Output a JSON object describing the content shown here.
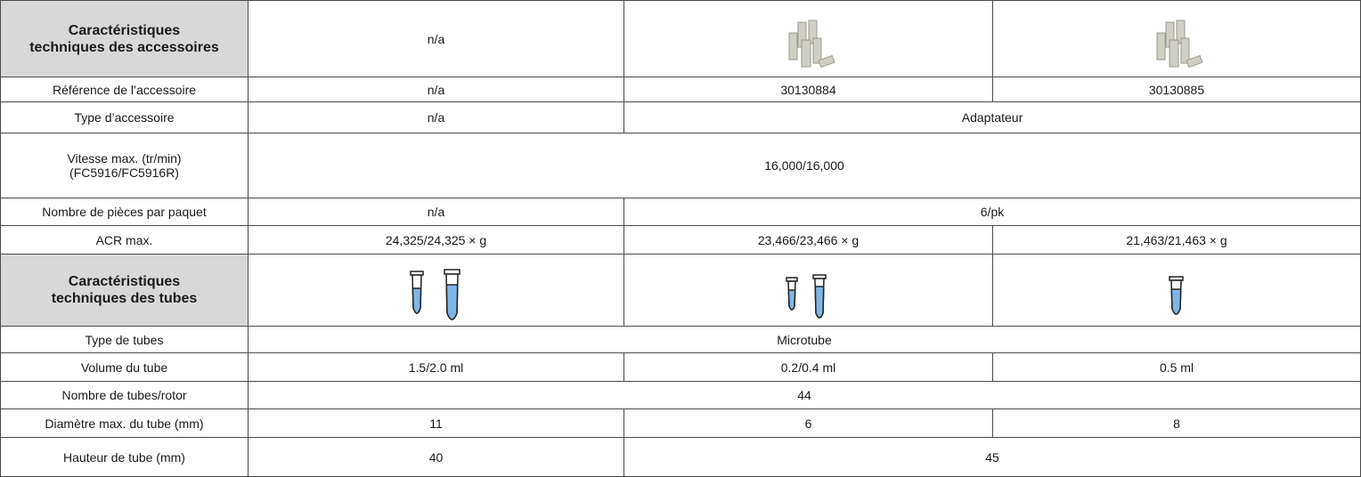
{
  "table": {
    "rows": [
      [
        "Caractéristiques\ntechniques des accessoires",
        "n/a"
      ],
      [
        "Référence de l’accessoire",
        "n/a",
        "30130884",
        "30130885"
      ],
      [
        "Type d’accessoire",
        "n/a",
        "Adaptateur"
      ],
      [
        "Vitesse max. (tr/min)\n(FC5916/FC5916R)",
        "16,000/16,000"
      ],
      [
        "Nombre de pièces par paquet",
        "n/a",
        "6/pk"
      ],
      [
        "ACR max.",
        "24,325/24,325 × g",
        "23,466/23,466 × g",
        "21,463/21,463 × g"
      ],
      [
        "Caractéristiques\ntechniques des tubes"
      ],
      [
        "Type de tubes",
        "Microtube"
      ],
      [
        "Volume du tube",
        "1.5/2.0 ml",
        "0.2/0.4 ml",
        "0.5 ml"
      ],
      [
        "Nombre de tubes/rotor",
        "44"
      ],
      [
        "Diamètre max. du tube (mm)",
        "11",
        "6",
        "8"
      ],
      [
        "Hauteur de tube (mm)",
        "40",
        "45"
      ]
    ]
  }
}
